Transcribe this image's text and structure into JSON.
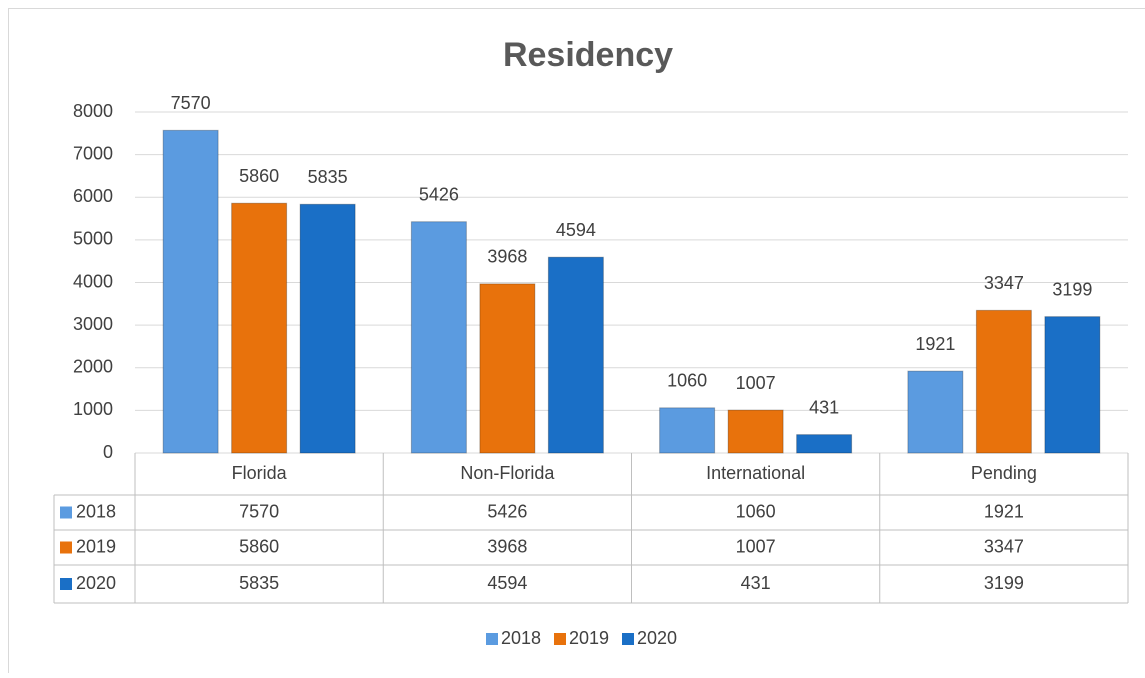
{
  "chart_data": {
    "type": "bar",
    "title": "Residency",
    "categories": [
      "Florida",
      "Non-Florida",
      "International",
      "Pending"
    ],
    "series": [
      {
        "name": "2018",
        "color": "#5b9be0",
        "values": [
          7570,
          5426,
          1060,
          1921
        ]
      },
      {
        "name": "2019",
        "color": "#e8720c",
        "values": [
          5860,
          3968,
          1007,
          3347
        ]
      },
      {
        "name": "2020",
        "color": "#1a6fc6",
        "values": [
          5835,
          4594,
          431,
          3199
        ]
      }
    ],
    "ylim": [
      0,
      8000
    ],
    "yticks": [
      0,
      1000,
      2000,
      3000,
      4000,
      5000,
      6000,
      7000,
      8000
    ],
    "grid": true,
    "legend": "bottom",
    "data_table": true
  }
}
